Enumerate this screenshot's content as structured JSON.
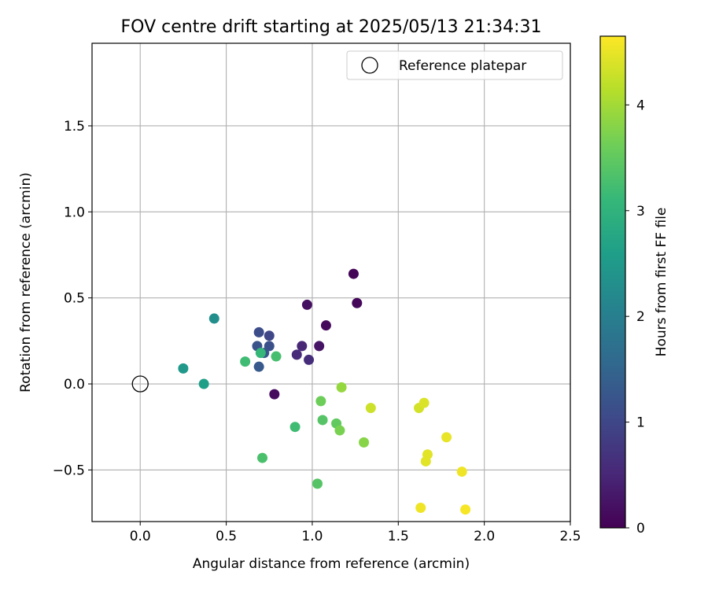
{
  "chart_data": {
    "type": "scatter",
    "title": "FOV centre drift starting at 2025/05/13 21:34:31",
    "xlabel": "Angular distance from reference (arcmin)",
    "ylabel": "Rotation from reference (arcmin)",
    "xlim": [
      -0.28,
      2.5
    ],
    "ylim": [
      -0.8,
      1.98
    ],
    "xticks": [
      0.0,
      0.5,
      1.0,
      1.5,
      2.0,
      2.5
    ],
    "xtick_labels": [
      "0.0",
      "0.5",
      "1.0",
      "1.5",
      "2.0",
      "2.5"
    ],
    "yticks": [
      -0.5,
      0.0,
      0.5,
      1.0,
      1.5
    ],
    "ytick_labels": [
      "−0.5",
      "0.0",
      "0.5",
      "1.0",
      "1.5"
    ],
    "grid": true,
    "legend": {
      "position": "top-right",
      "entries": [
        "Reference platepar"
      ]
    },
    "reference_point": {
      "x": 0.0,
      "y": 0.0
    },
    "colorbar": {
      "label": "Hours from first FF file",
      "min": 0,
      "max": 4.65,
      "ticks": [
        0,
        1,
        2,
        3,
        4
      ],
      "tick_labels": [
        "0",
        "1",
        "2",
        "3",
        "4"
      ],
      "colormap": [
        "#440154",
        "#482878",
        "#3e4989",
        "#31688e",
        "#26828e",
        "#1f9e89",
        "#35b779",
        "#6ece58",
        "#b5de2b",
        "#fde725"
      ]
    },
    "points": [
      {
        "x": 1.24,
        "y": 0.64,
        "t": 0.05
      },
      {
        "x": 1.26,
        "y": 0.47,
        "t": 0.08
      },
      {
        "x": 1.08,
        "y": 0.34,
        "t": 0.1
      },
      {
        "x": 0.78,
        "y": -0.06,
        "t": 0.15
      },
      {
        "x": 0.97,
        "y": 0.46,
        "t": 0.2
      },
      {
        "x": 1.04,
        "y": 0.22,
        "t": 0.25
      },
      {
        "x": 0.94,
        "y": 0.22,
        "t": 0.5
      },
      {
        "x": 0.91,
        "y": 0.17,
        "t": 0.55
      },
      {
        "x": 0.98,
        "y": 0.14,
        "t": 0.6
      },
      {
        "x": 0.75,
        "y": 0.28,
        "t": 1.0
      },
      {
        "x": 0.69,
        "y": 0.3,
        "t": 1.1
      },
      {
        "x": 0.75,
        "y": 0.22,
        "t": 1.15
      },
      {
        "x": 0.68,
        "y": 0.22,
        "t": 1.2
      },
      {
        "x": 0.72,
        "y": 0.18,
        "t": 1.25
      },
      {
        "x": 0.69,
        "y": 0.1,
        "t": 1.3
      },
      {
        "x": 0.43,
        "y": 0.38,
        "t": 2.3
      },
      {
        "x": 0.25,
        "y": 0.09,
        "t": 2.5
      },
      {
        "x": 0.37,
        "y": 0.0,
        "t": 2.6
      },
      {
        "x": 0.7,
        "y": 0.18,
        "t": 3.1
      },
      {
        "x": 0.61,
        "y": 0.13,
        "t": 3.2
      },
      {
        "x": 0.79,
        "y": 0.16,
        "t": 3.25
      },
      {
        "x": 0.9,
        "y": -0.25,
        "t": 3.2
      },
      {
        "x": 0.71,
        "y": -0.43,
        "t": 3.3
      },
      {
        "x": 1.03,
        "y": -0.58,
        "t": 3.4
      },
      {
        "x": 1.06,
        "y": -0.21,
        "t": 3.4
      },
      {
        "x": 1.14,
        "y": -0.23,
        "t": 3.5
      },
      {
        "x": 1.05,
        "y": -0.1,
        "t": 3.6
      },
      {
        "x": 1.16,
        "y": -0.27,
        "t": 3.7
      },
      {
        "x": 1.3,
        "y": -0.34,
        "t": 3.8
      },
      {
        "x": 1.17,
        "y": -0.02,
        "t": 3.9
      },
      {
        "x": 1.34,
        "y": -0.14,
        "t": 4.3
      },
      {
        "x": 1.62,
        "y": -0.14,
        "t": 4.35
      },
      {
        "x": 1.65,
        "y": -0.11,
        "t": 4.4
      },
      {
        "x": 1.67,
        "y": -0.41,
        "t": 4.45
      },
      {
        "x": 1.66,
        "y": -0.45,
        "t": 4.45
      },
      {
        "x": 1.78,
        "y": -0.31,
        "t": 4.5
      },
      {
        "x": 1.87,
        "y": -0.51,
        "t": 4.55
      },
      {
        "x": 1.63,
        "y": -0.72,
        "t": 4.55
      },
      {
        "x": 1.89,
        "y": -0.73,
        "t": 4.6
      }
    ]
  }
}
